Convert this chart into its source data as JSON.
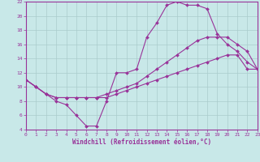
{
  "background_color": "#c8e8e8",
  "line_color": "#993399",
  "grid_color": "#aacccc",
  "xlabel": "Windchill (Refroidissement éolien,°C)",
  "xlim": [
    0,
    23
  ],
  "ylim": [
    4,
    22
  ],
  "xticks": [
    0,
    1,
    2,
    3,
    4,
    5,
    6,
    7,
    8,
    9,
    10,
    11,
    12,
    13,
    14,
    15,
    16,
    17,
    18,
    19,
    20,
    21,
    22,
    23
  ],
  "yticks": [
    4,
    6,
    8,
    10,
    12,
    14,
    16,
    18,
    20,
    22
  ],
  "line1_x": [
    0,
    1,
    2,
    3,
    4,
    5,
    6,
    7,
    8,
    9,
    10,
    11,
    12,
    13,
    14,
    15,
    16,
    17,
    18,
    19,
    20,
    21,
    22,
    23
  ],
  "line1_y": [
    11,
    10,
    9,
    8,
    7.5,
    6,
    4.5,
    4.5,
    8,
    12,
    12,
    12.5,
    17,
    19,
    21.5,
    22,
    21.5,
    21.5,
    21,
    17.5,
    16,
    15,
    13.5,
    12.5
  ],
  "line2_x": [
    0,
    1,
    2,
    3,
    4,
    5,
    6,
    7,
    8,
    9,
    10,
    11,
    12,
    13,
    14,
    15,
    16,
    17,
    18,
    19,
    20,
    21,
    22,
    23
  ],
  "line2_y": [
    11,
    10,
    9,
    8.5,
    8.5,
    8.5,
    8.5,
    8.5,
    9,
    9.5,
    10,
    10.5,
    11.5,
    12.5,
    13.5,
    14.5,
    15.5,
    16.5,
    17,
    17,
    17,
    16,
    15,
    12.5
  ],
  "line3_x": [
    0,
    1,
    2,
    3,
    4,
    5,
    6,
    7,
    8,
    9,
    10,
    11,
    12,
    13,
    14,
    15,
    16,
    17,
    18,
    19,
    20,
    21,
    22,
    23
  ],
  "line3_y": [
    11,
    10,
    9,
    8.5,
    8.5,
    8.5,
    8.5,
    8.5,
    8.5,
    9,
    9.5,
    10,
    10.5,
    11,
    11.5,
    12,
    12.5,
    13,
    13.5,
    14,
    14.5,
    14.5,
    12.5,
    12.5
  ],
  "marker": "D",
  "markersize": 2,
  "linewidth": 0.8,
  "tick_fontsize": 4.5,
  "label_fontsize": 5.5
}
